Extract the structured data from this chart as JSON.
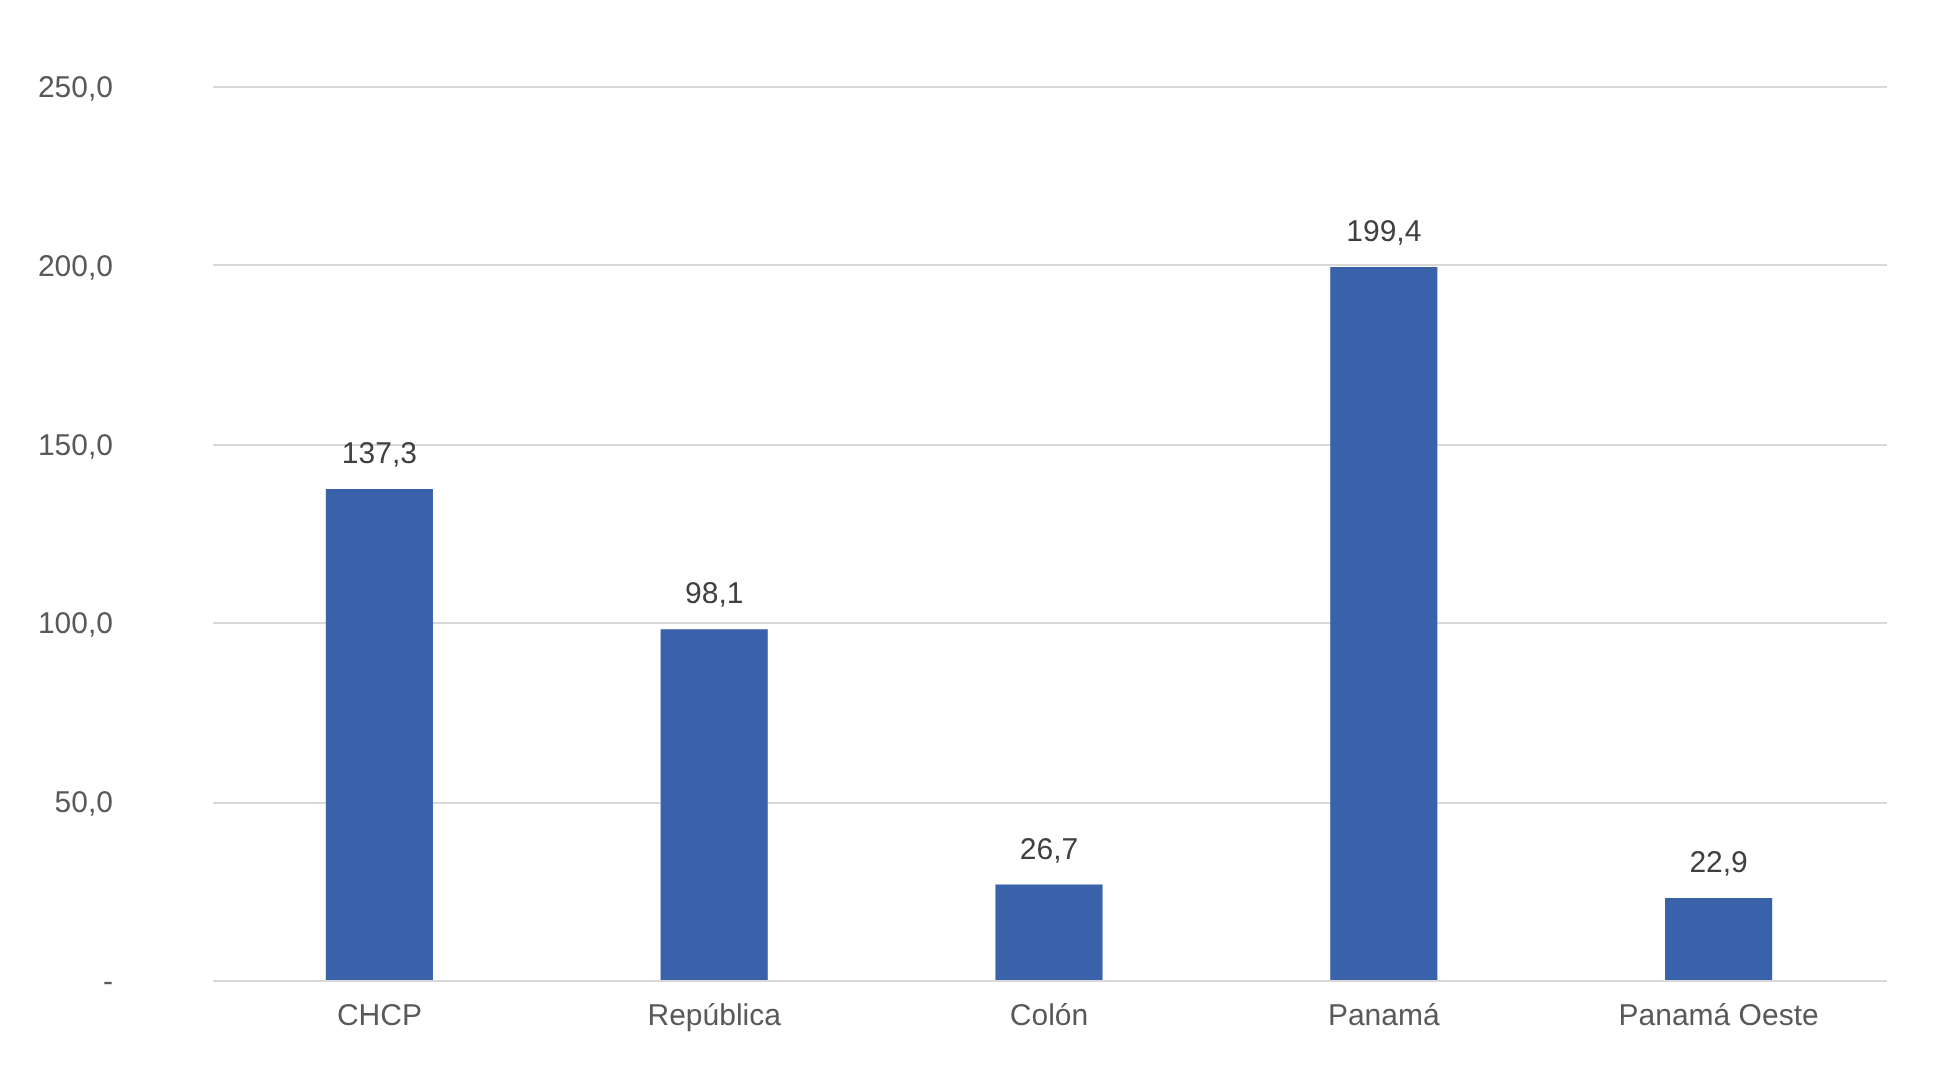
{
  "chart_data": {
    "type": "bar",
    "categories": [
      "CHCP",
      "República",
      "Colón",
      "Panamá",
      "Panamá Oeste"
    ],
    "values": [
      137.3,
      98.1,
      26.7,
      199.4,
      22.9
    ],
    "color": "#3a62ab",
    "value_labels": [
      "137,3",
      "98,1",
      "26,7",
      "199,4",
      "22,9"
    ],
    "ylim": [
      0,
      250
    ],
    "yticks": [
      {
        "value": 0,
        "label": "-"
      },
      {
        "value": 50,
        "label": "50,0"
      },
      {
        "value": 100,
        "label": "100,0"
      },
      {
        "value": 150,
        "label": "150,0"
      },
      {
        "value": 200,
        "label": "200,0"
      },
      {
        "value": 250,
        "label": "250,0"
      }
    ],
    "grid": "y"
  }
}
